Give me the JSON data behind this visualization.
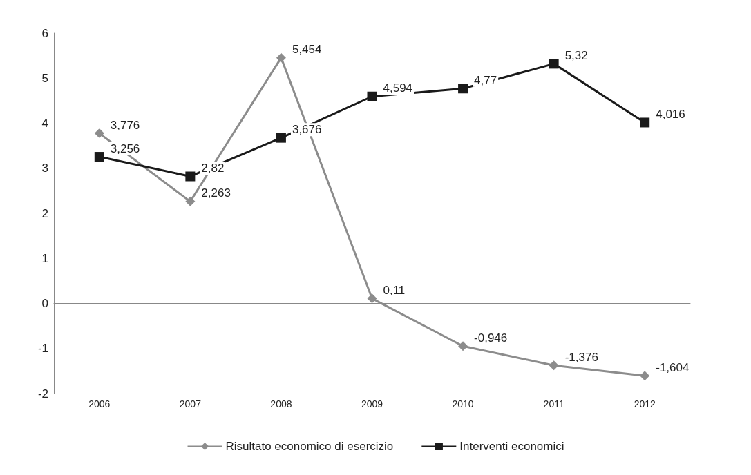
{
  "chart_data": {
    "type": "line",
    "categories": [
      "2006",
      "2007",
      "2008",
      "2009",
      "2010",
      "2011",
      "2012"
    ],
    "series": [
      {
        "name": "Risultato economico di esercizio",
        "color": "#8c8c8c",
        "marker": "diamond",
        "values": [
          3.776,
          2.263,
          5.454,
          0.11,
          -0.946,
          -1.376,
          -1.604
        ],
        "value_labels": [
          "3,776",
          "2,263",
          "5,454",
          "0,11",
          "-0,946",
          "-1,376",
          "-1,604"
        ]
      },
      {
        "name": "Interventi economici",
        "color": "#1a1a1a",
        "marker": "square",
        "values": [
          3.256,
          2.82,
          3.676,
          4.594,
          4.77,
          5.32,
          4.016
        ],
        "value_labels": [
          "3,256",
          "2,82",
          "3,676",
          "4,594",
          "4,77",
          "5,32",
          "4,016"
        ]
      }
    ],
    "ylim": [
      -2,
      6
    ],
    "yticks": [
      -2,
      -1,
      0,
      1,
      2,
      3,
      4,
      5,
      6
    ],
    "legend": "bottom"
  }
}
